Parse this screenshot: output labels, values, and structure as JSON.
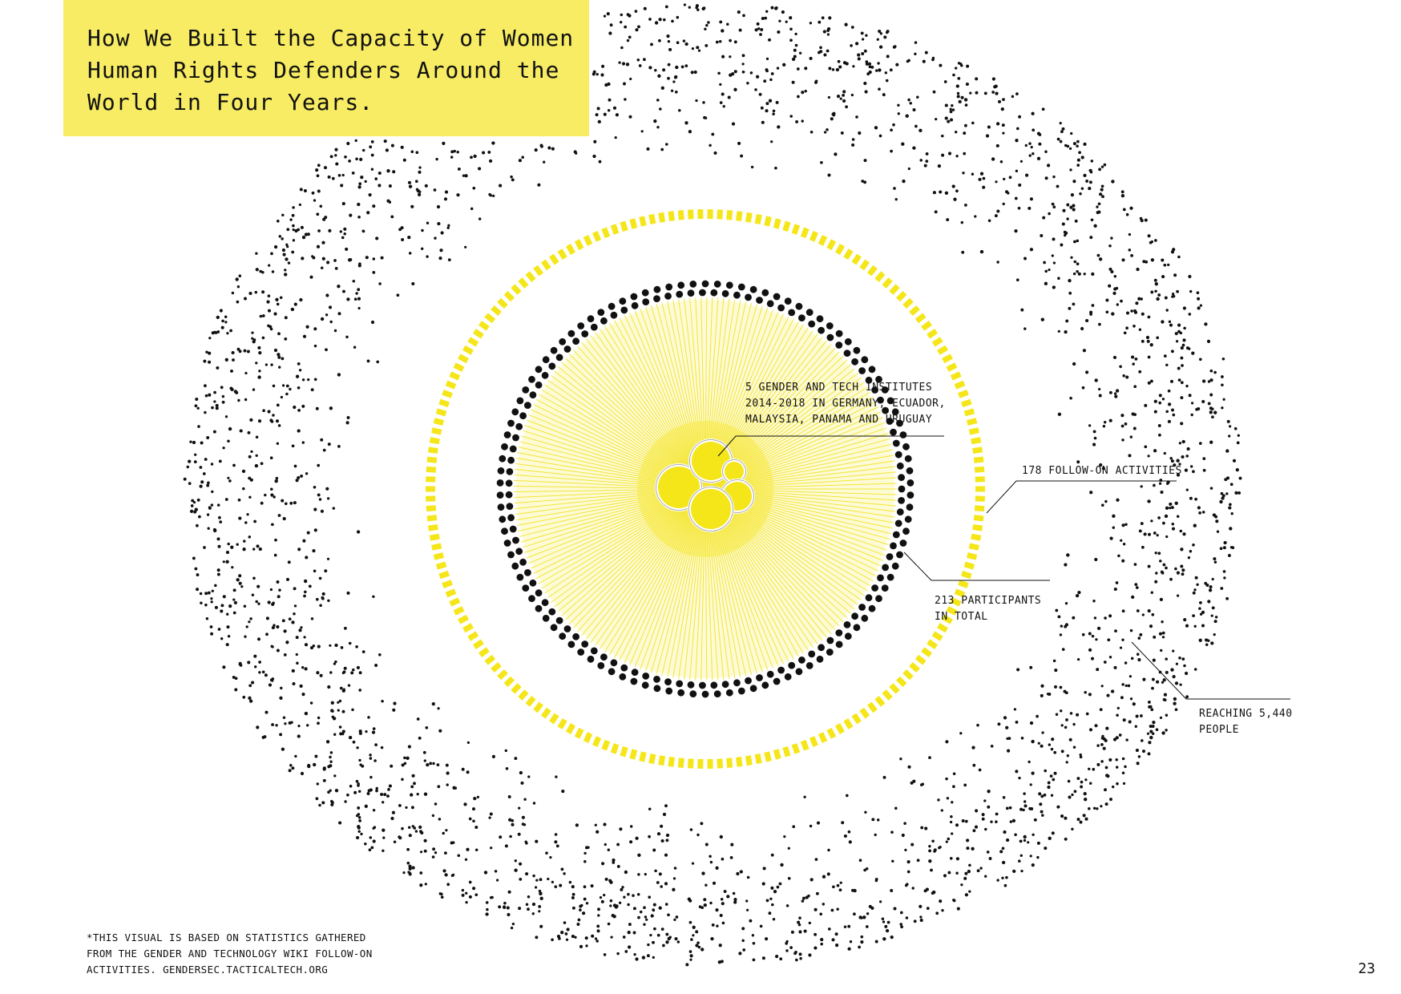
{
  "title": {
    "lines": [
      "How We Built the Capacity of Women",
      "Human Rights Defenders Around the",
      "World in Four Years."
    ]
  },
  "colors": {
    "accent_yellow": "#f7ec63",
    "ring_yellow": "#f5e61a",
    "ink": "#111111"
  },
  "diagram": {
    "institutes": 5,
    "participants": 213,
    "follow_on_activities": 178,
    "people_reached": 5440
  },
  "callouts": {
    "institutes": [
      "5 GENDER AND TECH INSTITUTES",
      "2014-2018 IN GERMANY, ECUADOR,",
      "MALAYSIA, PANAMA AND URUGUAY"
    ],
    "follow_on": [
      "178 FOLLOW-ON ACTIVITIES"
    ],
    "participants": [
      "213 PARTICIPANTS",
      "IN TOTAL"
    ],
    "reaching": [
      "REACHING 5,440",
      "PEOPLE"
    ]
  },
  "footnote": [
    "*THIS VISUAL IS BASED ON STATISTICS GATHERED",
    "FROM THE GENDER AND TECHNOLOGY WIKI FOLLOW-ON",
    "ACTIVITIES. GENDERSEC.TACTICALTECH.ORG"
  ],
  "page_number": "23"
}
